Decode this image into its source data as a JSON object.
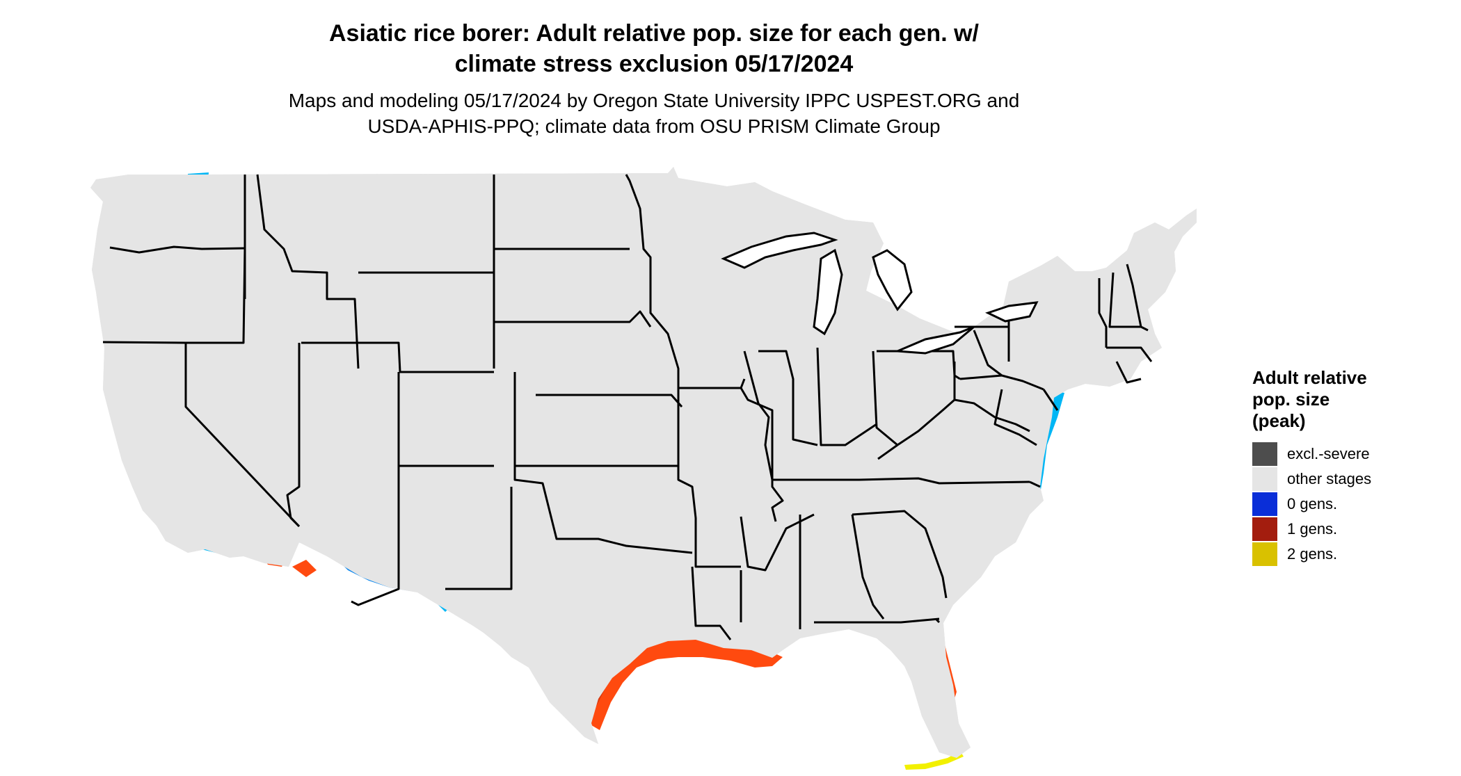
{
  "title_line1": "Asiatic rice borer: Adult relative pop. size for each gen. w/",
  "title_line2": "climate stress exclusion 05/17/2024",
  "subtitle_line1": "Maps and modeling 05/17/2024 by Oregon State University IPPC USPEST.ORG and",
  "subtitle_line2": "USDA-APHIS-PPQ; climate data from OSU PRISM Climate Group",
  "legend": {
    "title_lines": [
      "Adult relative",
      "pop. size",
      "(peak)"
    ],
    "items": [
      {
        "label": "excl.-severe",
        "color": "#4d4d4d"
      },
      {
        "label": "other stages",
        "color": "#e5e5e5"
      },
      {
        "label": "0 gens.",
        "color": "#0a2ed8"
      },
      {
        "label": "1 gens.",
        "color": "#a31d0e"
      },
      {
        "label": "2 gens.",
        "color": "#d9c100"
      }
    ]
  },
  "map_colors": {
    "land": "#e5e5e5",
    "border": "#000000",
    "gen0_light": "#00b6f5",
    "gen0_mid": "#0a86ee",
    "gen0_dark": "#1a5fe0",
    "gen1_light": "#ff4a0f",
    "gen1_dark": "#d83a10",
    "gen2": "#f2f000"
  }
}
